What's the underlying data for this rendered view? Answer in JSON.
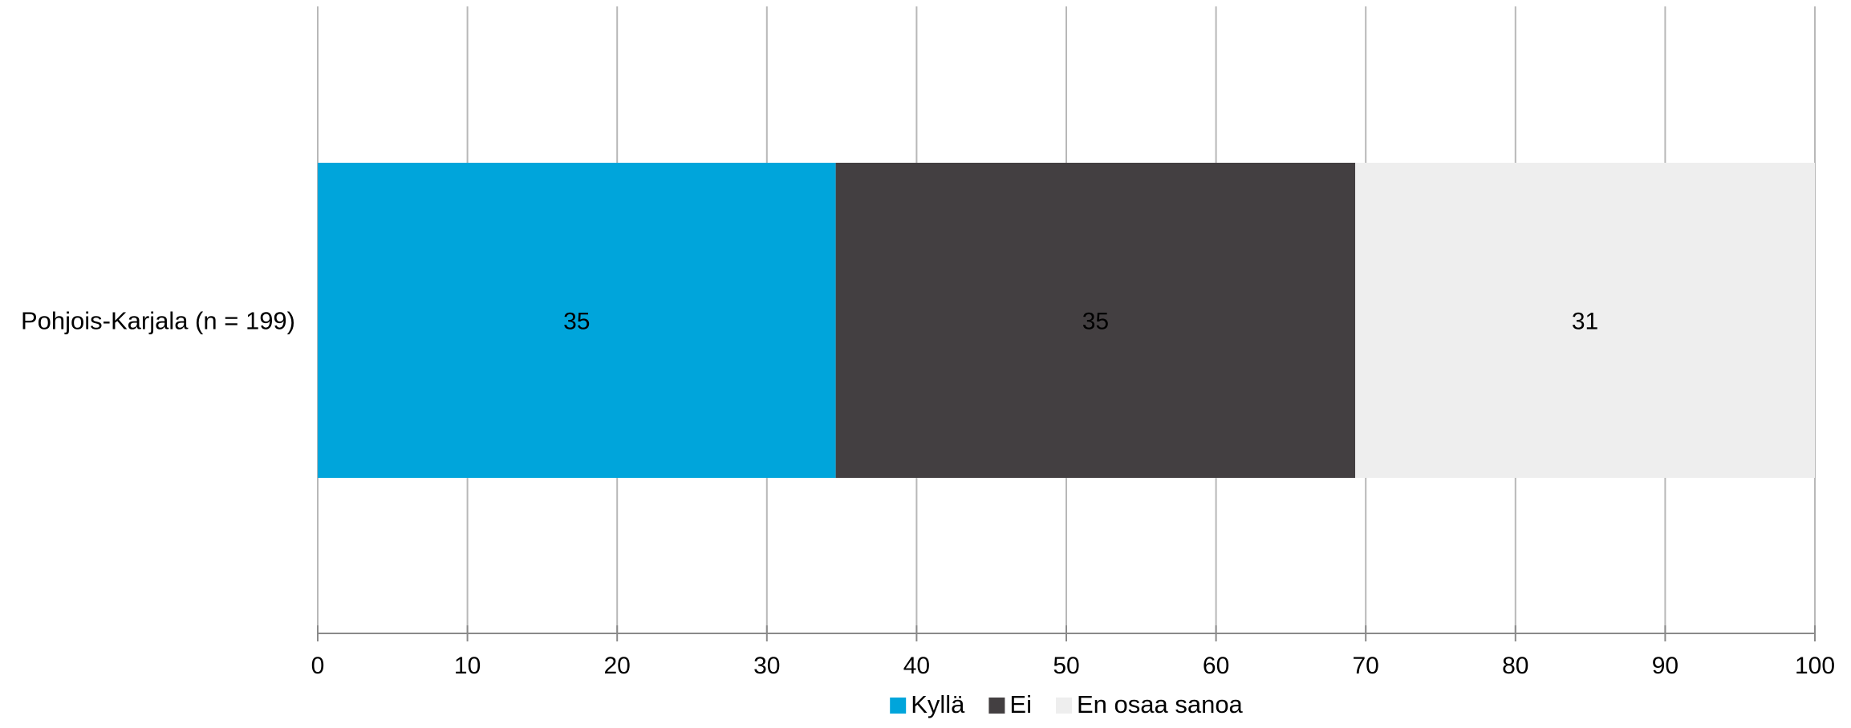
{
  "chart_data": {
    "type": "bar",
    "orientation": "horizontal",
    "stacked": true,
    "categories": [
      "Pohjois-Karjala (n = 199)"
    ],
    "series": [
      {
        "name": "Kyllä",
        "values": [
          34.6
        ],
        "label": "35",
        "color": "#00A5DB"
      },
      {
        "name": "Ei",
        "values": [
          34.7
        ],
        "label": "35",
        "color": "#433F41"
      },
      {
        "name": "En osaa sanoa",
        "values": [
          30.7
        ],
        "label": "31",
        "color": "#EEEEEE"
      }
    ],
    "xlim": [
      0,
      100
    ],
    "xticks": [
      "0",
      "10",
      "20",
      "30",
      "40",
      "50",
      "60",
      "70",
      "80",
      "90",
      "100"
    ],
    "title": "",
    "xlabel": "",
    "ylabel": "",
    "grid": true,
    "legend_position": "bottom"
  }
}
